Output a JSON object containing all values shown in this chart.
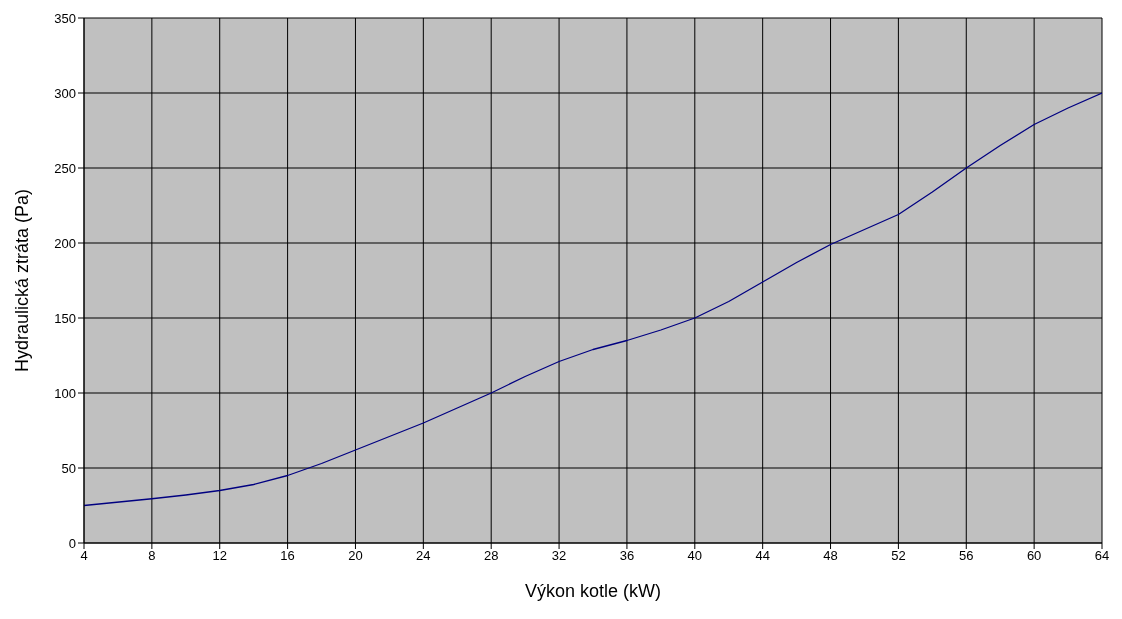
{
  "chart_data": {
    "type": "line",
    "xlabel": "Výkon kotle (kW)",
    "ylabel": "Hydraulická ztráta (Pa)",
    "x": [
      4,
      8,
      10,
      12,
      14,
      16,
      18,
      20,
      22,
      24,
      26,
      28,
      30,
      32,
      34,
      36,
      38,
      40,
      42,
      44,
      46,
      48,
      50,
      52,
      54,
      56,
      58,
      60,
      62,
      64
    ],
    "series": [
      {
        "color": "#000080",
        "values": [
          25,
          29.5,
          32,
          35,
          39,
          45,
          53,
          62,
          71,
          80,
          90,
          100,
          111,
          121,
          129,
          135,
          142,
          150,
          161,
          174,
          187,
          199,
          209,
          219,
          234,
          250,
          265,
          279,
          290,
          300
        ]
      }
    ],
    "xlim": [
      4,
      64
    ],
    "xticks": [
      4,
      8,
      12,
      16,
      20,
      24,
      28,
      32,
      36,
      40,
      44,
      48,
      52,
      56,
      60,
      64
    ],
    "ylim": [
      0,
      350
    ],
    "yticks": [
      0,
      50,
      100,
      150,
      200,
      250,
      300,
      350
    ],
    "grid": true,
    "marker": "none",
    "line_style": "solid"
  }
}
